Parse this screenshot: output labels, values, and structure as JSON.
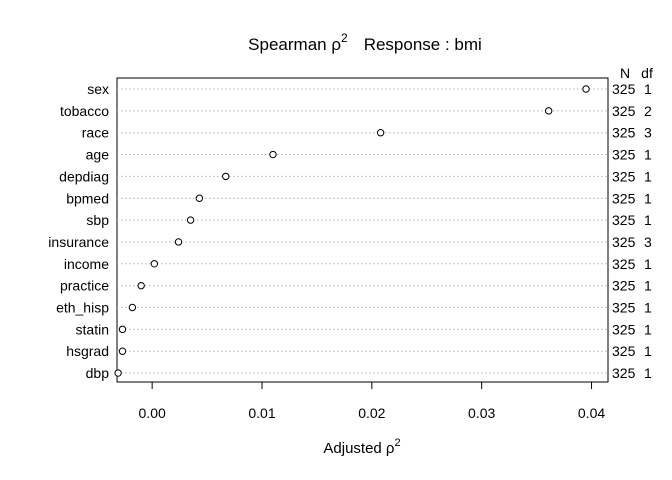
{
  "chart_data": {
    "type": "scatter",
    "title": "Spearman ρ²    Response : bmi",
    "title_parts": {
      "left": "Spearman ρ",
      "left_sup": "2",
      "right": "Response : bmi"
    },
    "xlabel": "Adjusted ρ²",
    "xlabel_parts": {
      "base": "Adjusted ρ",
      "sup": "2"
    },
    "xlim": [
      -0.0032,
      0.0415
    ],
    "xticks": [
      0.0,
      0.01,
      0.02,
      0.03,
      0.04
    ],
    "xtick_labels": [
      "0.00",
      "0.01",
      "0.02",
      "0.03",
      "0.04"
    ],
    "right_headers": {
      "n": "N",
      "df": "df"
    },
    "grid": "dotted horizontal",
    "rows": [
      {
        "label": "sex",
        "value": 0.0395,
        "n": "325",
        "df": "1"
      },
      {
        "label": "tobacco",
        "value": 0.0361,
        "n": "325",
        "df": "2"
      },
      {
        "label": "race",
        "value": 0.0208,
        "n": "325",
        "df": "3"
      },
      {
        "label": "age",
        "value": 0.011,
        "n": "325",
        "df": "1"
      },
      {
        "label": "depdiag",
        "value": 0.0067,
        "n": "325",
        "df": "1"
      },
      {
        "label": "bpmed",
        "value": 0.0043,
        "n": "325",
        "df": "1"
      },
      {
        "label": "sbp",
        "value": 0.0035,
        "n": "325",
        "df": "1"
      },
      {
        "label": "insurance",
        "value": 0.0024,
        "n": "325",
        "df": "3"
      },
      {
        "label": "income",
        "value": 0.0002,
        "n": "325",
        "df": "1"
      },
      {
        "label": "practice",
        "value": -0.001,
        "n": "325",
        "df": "1"
      },
      {
        "label": "eth_hisp",
        "value": -0.0018,
        "n": "325",
        "df": "1"
      },
      {
        "label": "statin",
        "value": -0.0027,
        "n": "325",
        "df": "1"
      },
      {
        "label": "hsgrad",
        "value": -0.0027,
        "n": "325",
        "df": "1"
      },
      {
        "label": "dbp",
        "value": -0.0031,
        "n": "325",
        "df": "1"
      }
    ]
  }
}
